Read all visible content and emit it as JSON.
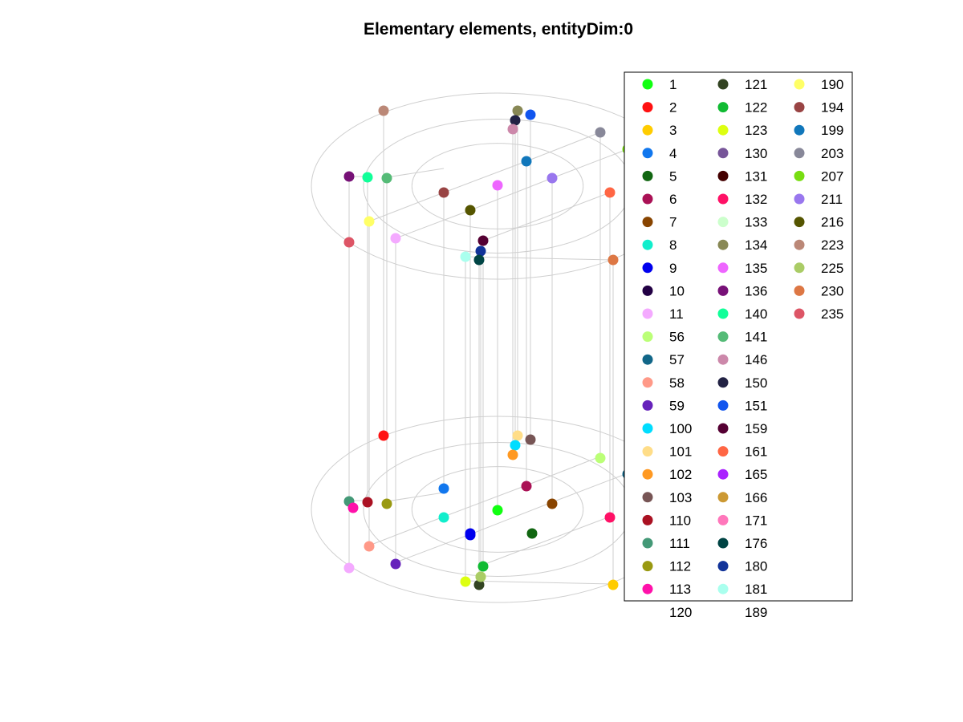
{
  "chart_data": {
    "type": "scatter",
    "title": "Elementary elements, entityDim:0",
    "xlabel": "",
    "ylabel": "",
    "grid": false,
    "legend_placement": "right",
    "legend": [
      {
        "label": "1",
        "color": "#11ff11"
      },
      {
        "label": "2",
        "color": "#ff1111"
      },
      {
        "label": "3",
        "color": "#ffcc00"
      },
      {
        "label": "4",
        "color": "#1177ee"
      },
      {
        "label": "5",
        "color": "#116611"
      },
      {
        "label": "6",
        "color": "#aa1155"
      },
      {
        "label": "7",
        "color": "#884400"
      },
      {
        "label": "8",
        "color": "#11eecc"
      },
      {
        "label": "9",
        "color": "#0000ee"
      },
      {
        "label": "10",
        "color": "#220044"
      },
      {
        "label": "11",
        "color": "#f4aaff"
      },
      {
        "label": "56",
        "color": "#bbff77"
      },
      {
        "label": "57",
        "color": "#116688"
      },
      {
        "label": "58",
        "color": "#ff9988"
      },
      {
        "label": "59",
        "color": "#6622bb"
      },
      {
        "label": "100",
        "color": "#00ddff"
      },
      {
        "label": "101",
        "color": "#ffdd88"
      },
      {
        "label": "102",
        "color": "#ff9922"
      },
      {
        "label": "103",
        "color": "#775555"
      },
      {
        "label": "110",
        "color": "#aa1122"
      },
      {
        "label": "111",
        "color": "#449977"
      },
      {
        "label": "112",
        "color": "#999911"
      },
      {
        "label": "113",
        "color": "#ff11aa"
      },
      {
        "label": "120",
        "color": ""
      },
      {
        "label": "121",
        "color": "#334422"
      },
      {
        "label": "122",
        "color": "#11bb33"
      },
      {
        "label": "123",
        "color": "#ddff11"
      },
      {
        "label": "130",
        "color": "#775599"
      },
      {
        "label": "131",
        "color": "#440000"
      },
      {
        "label": "132",
        "color": "#ff1166"
      },
      {
        "label": "133",
        "color": "#ccffcc"
      },
      {
        "label": "134",
        "color": "#888855"
      },
      {
        "label": "135",
        "color": "#ee66ff"
      },
      {
        "label": "136",
        "color": "#771177"
      },
      {
        "label": "140",
        "color": "#11ff99"
      },
      {
        "label": "141",
        "color": "#55bb77"
      },
      {
        "label": "146",
        "color": "#cc88aa"
      },
      {
        "label": "150",
        "color": "#222244"
      },
      {
        "label": "151",
        "color": "#1155ee"
      },
      {
        "label": "159",
        "color": "#550033"
      },
      {
        "label": "161",
        "color": "#ff6644"
      },
      {
        "label": "165",
        "color": "#aa22ff"
      },
      {
        "label": "166",
        "color": "#cc9933"
      },
      {
        "label": "171",
        "color": "#ff77bb"
      },
      {
        "label": "176",
        "color": "#004444"
      },
      {
        "label": "180",
        "color": "#113399"
      },
      {
        "label": "181",
        "color": "#aaffee"
      },
      {
        "label": "189",
        "color": ""
      },
      {
        "label": "190",
        "color": "#ffff66"
      },
      {
        "label": "194",
        "color": "#994444"
      },
      {
        "label": "199",
        "color": "#1177bb"
      },
      {
        "label": "203",
        "color": "#888899"
      },
      {
        "label": "207",
        "color": "#77dd11"
      },
      {
        "label": "211",
        "color": "#9977ee"
      },
      {
        "label": "216",
        "color": "#555500"
      },
      {
        "label": "223",
        "color": "#bb8877"
      },
      {
        "label": "225",
        "color": "#aacc66"
      },
      {
        "label": "230",
        "color": "#dd7744"
      },
      {
        "label": "235",
        "color": "#dd5566"
      }
    ]
  }
}
